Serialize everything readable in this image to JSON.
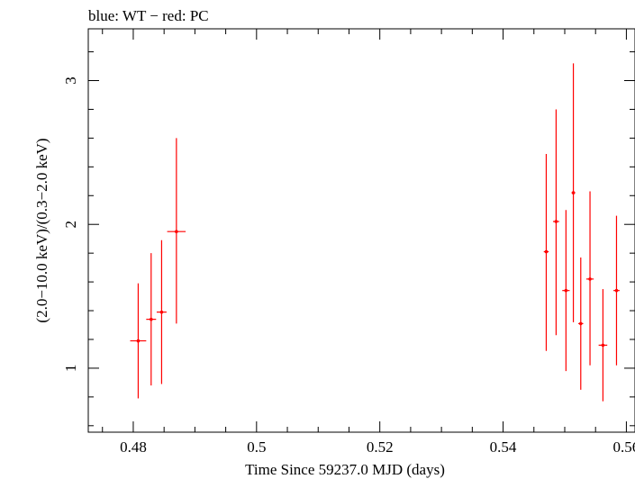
{
  "chart_data": {
    "type": "scatter",
    "title": "blue: WT − red: PC",
    "xlabel": "Time Since 59237.0 MJD (days)",
    "ylabel": "(2.0−10.0 keV)/(0.3−2.0 keV)",
    "xlim": [
      0.4727,
      0.5614
    ],
    "ylim": [
      0.555,
      3.36
    ],
    "x_ticks": [
      {
        "value": 0.48,
        "label": "0.48"
      },
      {
        "value": 0.5,
        "label": "0.5"
      },
      {
        "value": 0.52,
        "label": "0.52"
      },
      {
        "value": 0.54,
        "label": "0.54"
      },
      {
        "value": 0.56,
        "label": "0.56"
      }
    ],
    "y_ticks": [
      {
        "value": 1,
        "label": "1"
      },
      {
        "value": 2,
        "label": "2"
      },
      {
        "value": 3,
        "label": "3"
      }
    ],
    "grid": false,
    "series": [
      {
        "name": "PC",
        "color": "#ff0000",
        "points": [
          {
            "x": 0.4808,
            "xerr": 0.0013,
            "y": 1.19,
            "ylo": 0.79,
            "yhi": 1.59
          },
          {
            "x": 0.4829,
            "xerr": 0.0008,
            "y": 1.34,
            "ylo": 0.88,
            "yhi": 1.8
          },
          {
            "x": 0.4846,
            "xerr": 0.0008,
            "y": 1.39,
            "ylo": 0.89,
            "yhi": 1.89
          },
          {
            "x": 0.487,
            "xerr": 0.0015,
            "y": 1.95,
            "ylo": 1.31,
            "yhi": 2.6
          },
          {
            "x": 0.547,
            "xerr": 0.0004,
            "y": 1.81,
            "ylo": 1.12,
            "yhi": 2.49
          },
          {
            "x": 0.5486,
            "xerr": 0.0005,
            "y": 2.02,
            "ylo": 1.23,
            "yhi": 2.8
          },
          {
            "x": 0.5502,
            "xerr": 0.0006,
            "y": 1.54,
            "ylo": 0.98,
            "yhi": 2.1
          },
          {
            "x": 0.5514,
            "xerr": 0.0003,
            "y": 2.22,
            "ylo": 1.32,
            "yhi": 3.12
          },
          {
            "x": 0.5526,
            "xerr": 0.0004,
            "y": 1.31,
            "ylo": 0.85,
            "yhi": 1.77
          },
          {
            "x": 0.5541,
            "xerr": 0.0006,
            "y": 1.62,
            "ylo": 1.02,
            "yhi": 2.23
          },
          {
            "x": 0.5562,
            "xerr": 0.0007,
            "y": 1.16,
            "ylo": 0.77,
            "yhi": 1.55
          },
          {
            "x": 0.5584,
            "xerr": 0.0005,
            "y": 1.54,
            "ylo": 1.02,
            "yhi": 2.06
          }
        ]
      }
    ]
  }
}
